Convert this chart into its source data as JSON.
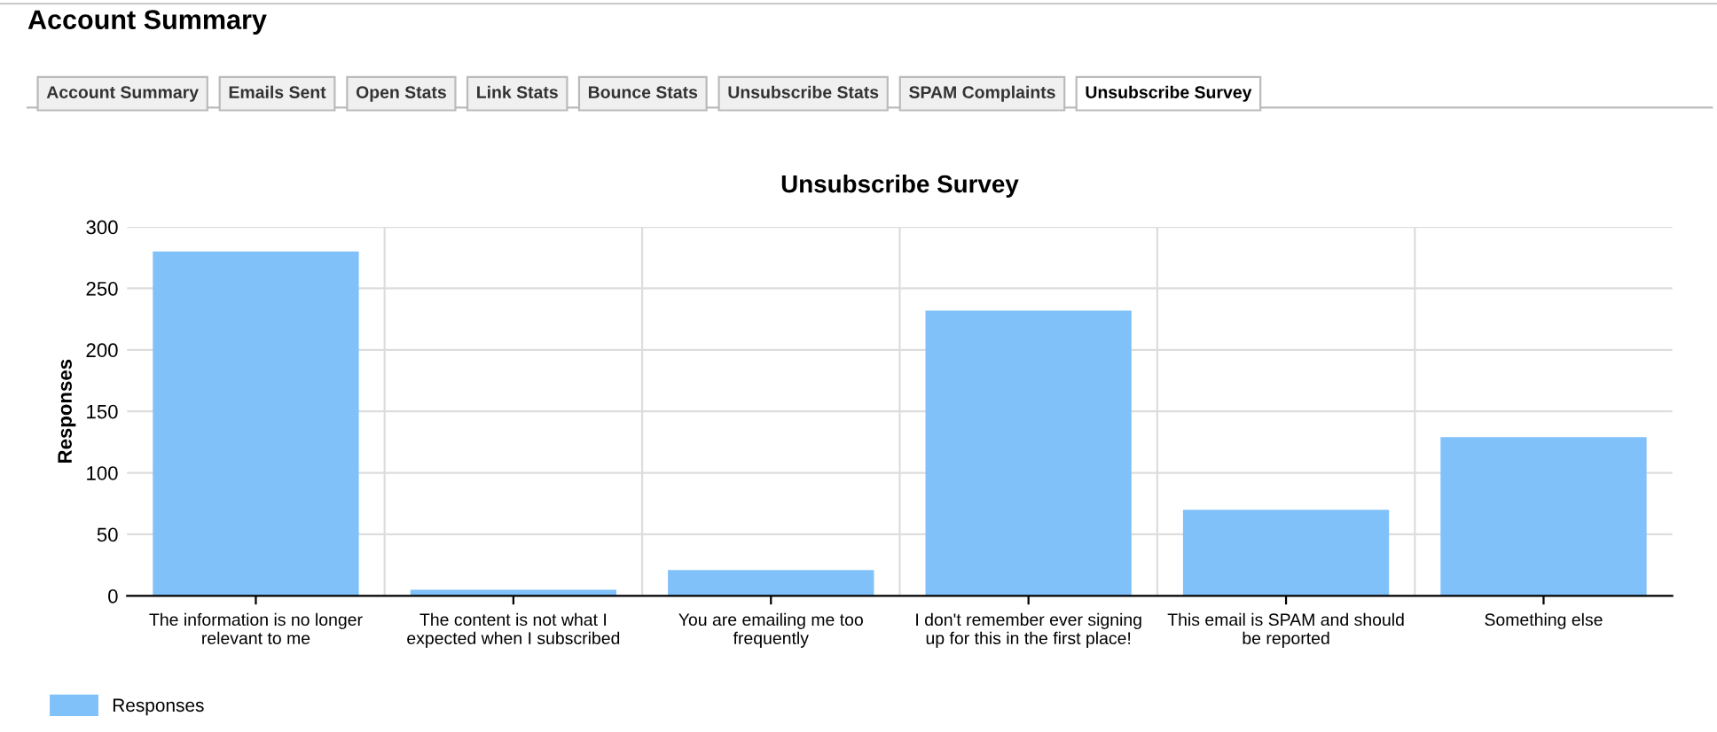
{
  "chart_data": {
    "type": "bar",
    "title": "Unsubscribe Survey",
    "ylabel": "Responses",
    "categories": [
      "The information is no longer\nrelevant to me",
      "The content is not what I\nexpected when I subscribed",
      "You are emailing me too\nfrequently",
      "I don't remember ever signing\nup for this in the first place!",
      "This email is SPAM and should\nbe reported",
      "Something else"
    ],
    "series": [
      {
        "name": "Responses",
        "color": "#80c1fa",
        "values": [
          280,
          5,
          21,
          232,
          70,
          129
        ]
      }
    ],
    "ylim": [
      0,
      300
    ],
    "yticks": [
      0,
      50,
      100,
      150,
      200,
      250,
      300
    ],
    "grid": true,
    "legend": "bottom left",
    "annotations": [
      "Account Summary",
      "Account Summary",
      "Emails Sent",
      "Open Stats",
      "Link Stats",
      "Bounce Stats",
      "Unsubscribe Stats",
      "SPAM Complaints",
      "Unsubscribe Survey"
    ]
  }
}
